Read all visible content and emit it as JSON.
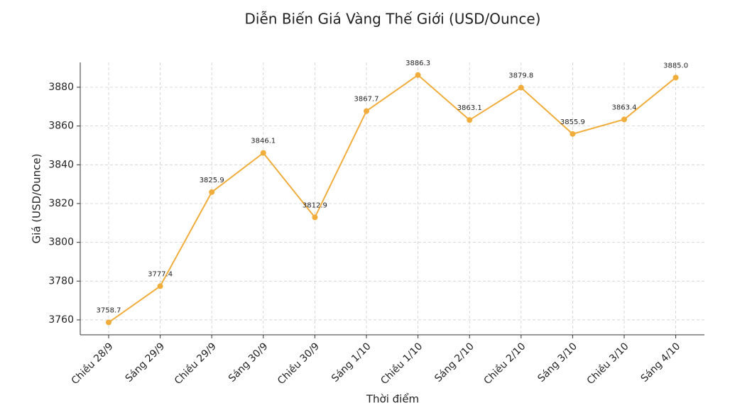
{
  "chart_data": {
    "type": "line",
    "title": "Diễn Biến Giá Vàng Thế Giới (USD/Ounce)",
    "x_label": "Thời điểm",
    "y_label": "Giá (USD/Ounce)",
    "categories": [
      "Chiều 28/9",
      "Sáng 29/9",
      "Chiều 29/9",
      "Sáng 30/9",
      "Chiều 30/9",
      "Sáng 1/10",
      "Chiều 1/10",
      "Sáng 2/10",
      "Chiều 2/10",
      "Sáng 3/10",
      "Chiều 3/10",
      "Sáng 4/10"
    ],
    "series": [
      {
        "name": "Giá vàng",
        "color": "#f0ad3c",
        "values": [
          3758.7,
          3777.4,
          3825.9,
          3846.1,
          3812.9,
          3867.7,
          3886.3,
          3863.1,
          3879.8,
          3855.9,
          3863.4,
          3885
        ],
        "value_labels": [
          "3758.7",
          "3777.4",
          "3825.9",
          "3846.1",
          "3812.9",
          "3867.7",
          "3886.3",
          "3863.1",
          "3879.8",
          "3855.9",
          "3863.4",
          "3885.0"
        ]
      }
    ],
    "ylim": [
      3752.3,
      3892.8
    ],
    "yticks": [
      3760,
      3780,
      3800,
      3820,
      3840,
      3860,
      3880
    ],
    "grid": true
  }
}
